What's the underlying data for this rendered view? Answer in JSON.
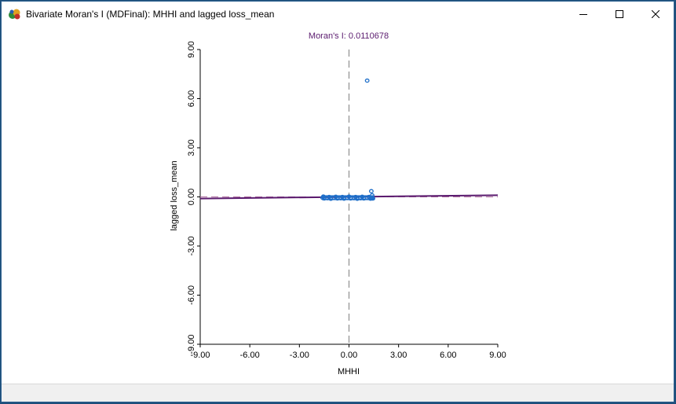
{
  "window": {
    "title": "Bivariate Moran's I (MDFinal): MHHI and lagged loss_mean",
    "icon": "geoda-app-icon",
    "controls": [
      "minimize-icon",
      "maximize-icon",
      "close-icon"
    ]
  },
  "chart_data": {
    "type": "scatter",
    "title": "Moran's I: 0.0110678",
    "xlabel": "MHHI",
    "ylabel": "lagged loss_mean",
    "xlim": [
      -9,
      9
    ],
    "ylim": [
      -9,
      9
    ],
    "xticks": [
      "-9.00",
      "-6.00",
      "-3.00",
      "0.00",
      "3.00",
      "6.00",
      "9.00"
    ],
    "yticks": [
      "-9.00",
      "-6.00",
      "-3.00",
      "0.00",
      "3.00",
      "6.00",
      "9.00"
    ],
    "grid": false,
    "regression_slope": 0.0110678,
    "colors": {
      "points": "#1f6fc9",
      "regression_line": "#5a1a6e",
      "title": "#5a1a6e",
      "zero_lines": "#7f7f7f"
    },
    "points": {
      "x": [
        1.1,
        1.35,
        1.4,
        1.42,
        -1.6,
        -1.5,
        -1.3,
        -1.1,
        -0.9,
        -0.7,
        -0.5,
        -0.3,
        -0.1,
        0.1,
        0.3,
        0.5,
        0.7,
        0.9,
        1.1,
        1.3,
        1.45,
        -1.55,
        -1.2,
        -0.8,
        -0.4,
        0.0,
        0.4,
        0.8,
        1.2,
        1.4
      ],
      "y": [
        7.1,
        0.35,
        0.1,
        -0.05,
        -0.05,
        -0.1,
        -0.08,
        -0.12,
        -0.06,
        -0.1,
        -0.09,
        -0.11,
        -0.07,
        -0.1,
        -0.08,
        -0.12,
        -0.09,
        -0.1,
        -0.06,
        -0.11,
        -0.1,
        0.02,
        0.0,
        0.01,
        0.0,
        0.02,
        0.0,
        0.01,
        0.0,
        -0.1
      ]
    }
  }
}
